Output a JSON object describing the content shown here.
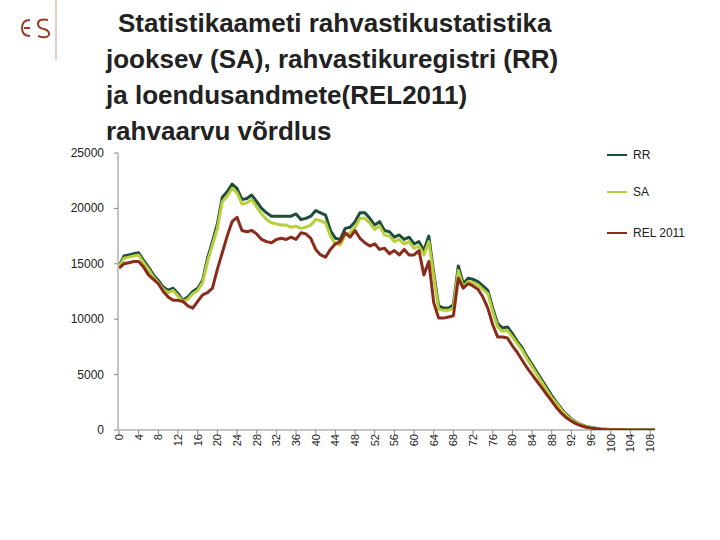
{
  "chart_data": {
    "type": "line",
    "title": "Statistikaameti rahvastikustatistika\njooksev (SA), rahvastikuregistri (RR)\nja loendusandmete(REL2011)\nrahvaarvu võrdlus",
    "x": [
      0,
      1,
      2,
      3,
      4,
      5,
      6,
      7,
      8,
      9,
      10,
      11,
      12,
      13,
      14,
      15,
      16,
      17,
      18,
      19,
      20,
      21,
      22,
      23,
      24,
      25,
      26,
      27,
      28,
      29,
      30,
      31,
      32,
      33,
      34,
      35,
      36,
      37,
      38,
      39,
      40,
      41,
      42,
      43,
      44,
      45,
      46,
      47,
      48,
      49,
      50,
      51,
      52,
      53,
      54,
      55,
      56,
      57,
      58,
      59,
      60,
      61,
      62,
      63,
      64,
      65,
      66,
      67,
      68,
      69,
      70,
      71,
      72,
      73,
      74,
      75,
      76,
      77,
      78,
      79,
      80,
      81,
      82,
      83,
      84,
      85,
      86,
      87,
      88,
      89,
      90,
      91,
      92,
      93,
      94,
      95,
      96,
      97,
      98,
      99,
      100,
      101,
      102,
      103,
      104,
      105,
      106,
      107,
      108,
      109
    ],
    "series": [
      {
        "name": "RR",
        "color": "#1e4d3c",
        "values": [
          14800,
          15700,
          15800,
          15900,
          16000,
          15300,
          14700,
          14000,
          13500,
          12900,
          12600,
          12800,
          12300,
          11700,
          12000,
          12500,
          12800,
          13500,
          15500,
          17000,
          18600,
          21000,
          21500,
          22200,
          21800,
          20800,
          20900,
          21200,
          20600,
          20000,
          19600,
          19300,
          19300,
          19300,
          19300,
          19300,
          19500,
          19000,
          19100,
          19300,
          19800,
          19600,
          19400,
          18000,
          17300,
          17200,
          18200,
          18300,
          18800,
          19600,
          19600,
          19100,
          18500,
          18800,
          18000,
          17900,
          17400,
          17600,
          17200,
          17400,
          16800,
          17000,
          16200,
          17500,
          14200,
          11200,
          11000,
          11000,
          11300,
          14800,
          13200,
          13700,
          13600,
          13400,
          13000,
          12600,
          11000,
          9600,
          9200,
          9300,
          8700,
          8000,
          7400,
          6600,
          5900,
          5200,
          4500,
          3800,
          3100,
          2500,
          1900,
          1400,
          1000,
          700,
          480,
          330,
          230,
          150,
          100,
          70,
          45,
          30,
          20,
          15,
          10,
          8,
          5,
          4,
          3,
          2
        ]
      },
      {
        "name": "SA",
        "color": "#b8cf3c",
        "values": [
          14700,
          15500,
          15600,
          15700,
          15800,
          15100,
          14500,
          13800,
          13300,
          12700,
          12400,
          12600,
          12100,
          11600,
          11800,
          12300,
          12600,
          13300,
          15200,
          16700,
          18200,
          20600,
          21100,
          21800,
          21400,
          20400,
          20500,
          20800,
          20100,
          19500,
          19000,
          18700,
          18600,
          18500,
          18500,
          18300,
          18400,
          18200,
          18300,
          18500,
          19000,
          18900,
          18700,
          17500,
          16800,
          16700,
          17600,
          17800,
          18300,
          19100,
          19100,
          18700,
          18100,
          18400,
          17600,
          17500,
          17000,
          17200,
          16800,
          17000,
          16400,
          16600,
          15800,
          17000,
          13900,
          10900,
          10800,
          10800,
          11000,
          14400,
          12900,
          13400,
          13300,
          13100,
          12700,
          12300,
          10700,
          9300,
          8900,
          9000,
          8400,
          7800,
          7200,
          6400,
          5700,
          5000,
          4300,
          3600,
          2900,
          2400,
          1800,
          1300,
          950,
          660,
          450,
          310,
          210,
          140,
          95,
          65,
          42,
          28,
          19,
          14,
          9,
          7,
          5,
          4,
          3,
          2
        ]
      },
      {
        "name": "REL 2011",
        "color": "#8a2b1b",
        "values": [
          14600,
          15000,
          15100,
          15200,
          15200,
          14700,
          14000,
          13600,
          13200,
          12500,
          12000,
          11700,
          11700,
          11600,
          11200,
          11000,
          11600,
          12200,
          12400,
          12800,
          14500,
          16000,
          17500,
          18800,
          19200,
          18000,
          17900,
          18000,
          17700,
          17200,
          17000,
          16900,
          17200,
          17300,
          17200,
          17400,
          17200,
          17800,
          17700,
          17300,
          16300,
          15800,
          15600,
          16300,
          16800,
          17000,
          17800,
          17400,
          18000,
          17300,
          16900,
          16600,
          16800,
          16300,
          16400,
          15900,
          16200,
          15800,
          16300,
          15800,
          15800,
          16200,
          14000,
          15200,
          11500,
          10100,
          10100,
          10200,
          10300,
          13700,
          12800,
          13200,
          13000,
          12700,
          12000,
          11000,
          9500,
          8400,
          8400,
          8300,
          7600,
          7000,
          6300,
          5600,
          5000,
          4400,
          3800,
          3200,
          2600,
          2000,
          1500,
          1100,
          800,
          550,
          380,
          250,
          170,
          110,
          70,
          45,
          30,
          20,
          14,
          10,
          7,
          5,
          4,
          3,
          2,
          1
        ]
      }
    ],
    "xlim": [
      0,
      109
    ],
    "xticks": [
      0,
      4,
      8,
      12,
      16,
      20,
      24,
      28,
      32,
      36,
      40,
      44,
      48,
      52,
      56,
      60,
      64,
      68,
      72,
      76,
      80,
      84,
      88,
      92,
      96,
      100,
      104,
      108
    ],
    "ylim": [
      0,
      25000
    ],
    "yticks": [
      0,
      5000,
      10000,
      15000,
      20000,
      25000
    ],
    "grid": false,
    "legend": "right"
  }
}
